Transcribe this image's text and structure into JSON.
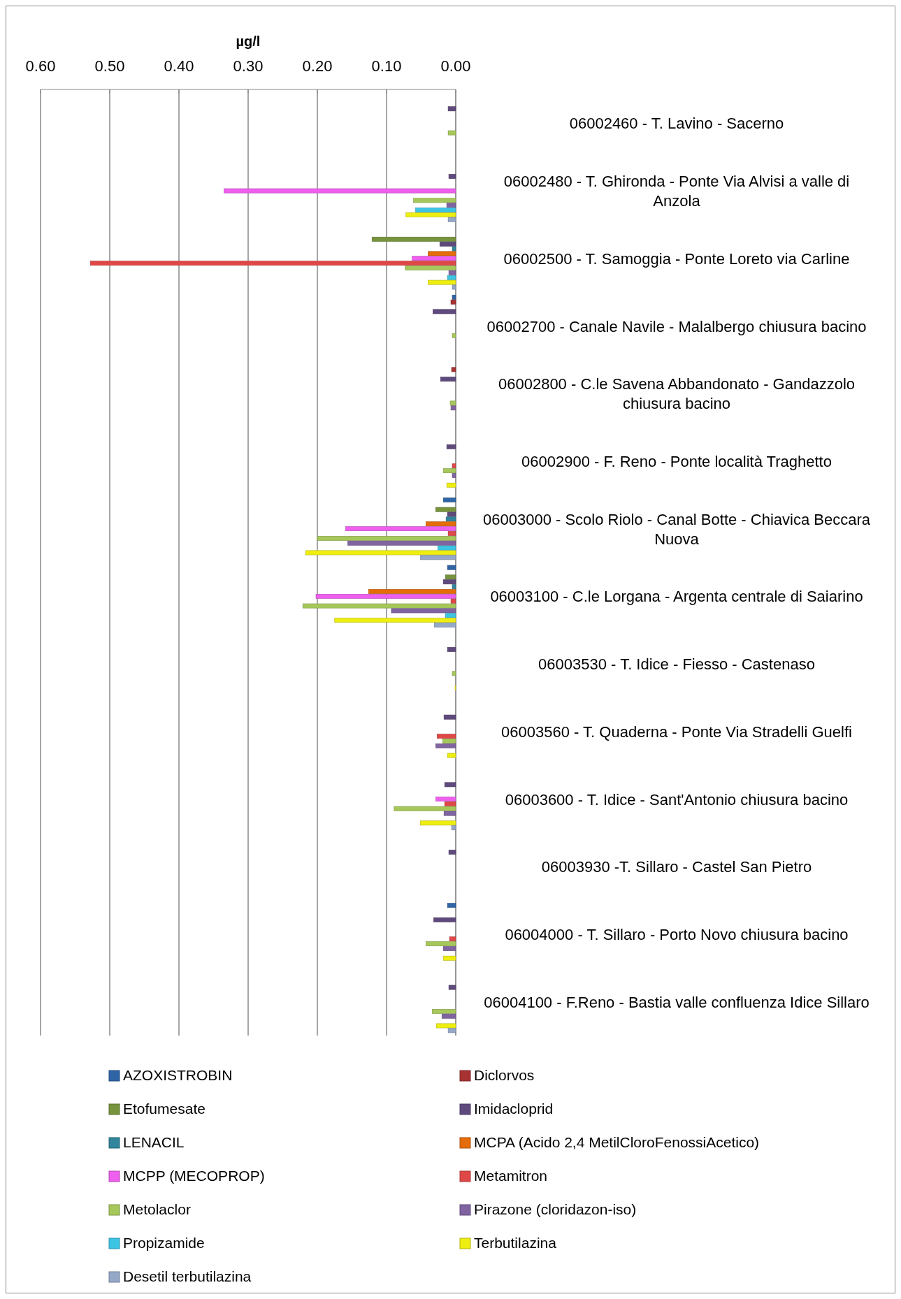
{
  "chart_data": {
    "type": "bar",
    "orientation": "horizontal",
    "xlabel": "µg/l",
    "categories": [
      "06002460 - T. Lavino - Sacerno",
      "06002480 - T. Ghironda - Ponte Via Alvisi a valle di Anzola",
      "06002500 - T. Samoggia - Ponte Loreto via Carline",
      "06002700 - Canale Navile - Malalbergo chiusura bacino",
      "06002800 - C.le Savena Abbandonato - Gandazzolo chiusura bacino",
      "06002900 - F. Reno - Ponte località Traghetto",
      "06003000 - Scolo Riolo - Canal Botte - Chiavica Beccara Nuova",
      "06003100 - C.le Lorgana - Argenta centrale di Saiarino",
      "06003530 - T. Idice - Fiesso - Castenaso",
      "06003560 - T. Quaderna - Ponte Via Stradelli Guelfi",
      "06003600 - T. Idice - Sant'Antonio chiusura bacino",
      "06003930 -T. Sillaro - Castel San Pietro",
      "06004000 - T. Sillaro - Porto Novo chiusura bacino",
      "06004100 - F.Reno - Bastia valle confluenza Idice Sillaro"
    ],
    "series": [
      {
        "name": "AZOXISTROBIN",
        "color": "#2f64a6",
        "values": [
          null,
          null,
          null,
          0.005,
          null,
          null,
          0.018,
          0.012,
          null,
          null,
          null,
          null,
          0.012,
          null
        ]
      },
      {
        "name": "Diclorvos",
        "color": "#a83232",
        "values": [
          null,
          null,
          null,
          0.007,
          0.006,
          null,
          null,
          null,
          null,
          null,
          null,
          null,
          null,
          null
        ]
      },
      {
        "name": "Etofumesate",
        "color": "#77933c",
        "values": [
          null,
          null,
          0.121,
          null,
          null,
          null,
          0.029,
          0.015,
          null,
          null,
          null,
          null,
          null,
          null
        ]
      },
      {
        "name": "Imidacloprid",
        "color": "#5f4a7d",
        "values": [
          0.011,
          0.01,
          0.023,
          0.033,
          0.022,
          0.013,
          0.012,
          0.018,
          0.012,
          0.017,
          0.016,
          0.01,
          0.032,
          0.01
        ]
      },
      {
        "name": "LENACIL",
        "color": "#31859c",
        "values": [
          null,
          null,
          0.005,
          null,
          null,
          null,
          0.014,
          0.005,
          null,
          null,
          null,
          null,
          null,
          null
        ]
      },
      {
        "name": "MCPA (Acido 2,4 MetilCloroFenossiAcetico)",
        "color": "#e46c0a",
        "values": [
          null,
          null,
          0.04,
          null,
          null,
          null,
          0.043,
          0.126,
          null,
          null,
          null,
          null,
          null,
          null
        ]
      },
      {
        "name": "MCPP (MECOPROP)",
        "color": "#ee5fee",
        "values": [
          null,
          0.335,
          0.063,
          null,
          null,
          null,
          0.159,
          0.202,
          null,
          null,
          0.029,
          null,
          null,
          null
        ]
      },
      {
        "name": "Metamitron",
        "color": "#e04848",
        "values": [
          null,
          null,
          0.528,
          null,
          null,
          0.005,
          0.011,
          0.007,
          null,
          0.027,
          0.016,
          null,
          0.009,
          null
        ]
      },
      {
        "name": "Metolaclor",
        "color": "#a6c85a",
        "values": [
          0.011,
          0.061,
          0.073,
          0.005,
          0.008,
          0.018,
          0.2,
          0.221,
          0.005,
          0.019,
          0.089,
          null,
          0.043,
          0.034
        ]
      },
      {
        "name": "Pirazone (cloridazon-iso)",
        "color": "#8064a2",
        "values": [
          null,
          0.013,
          0.01,
          null,
          0.007,
          0.005,
          0.156,
          0.093,
          null,
          0.029,
          0.017,
          null,
          0.018,
          0.02
        ]
      },
      {
        "name": "Propizamide",
        "color": "#3cc4e4",
        "values": [
          null,
          0.058,
          0.012,
          null,
          null,
          null,
          0.026,
          0.015,
          null,
          null,
          null,
          null,
          null,
          null
        ]
      },
      {
        "name": "Terbutilazina",
        "color": "#eeee10",
        "values": [
          null,
          0.072,
          0.04,
          null,
          null,
          0.013,
          0.217,
          0.175,
          0.001,
          0.012,
          0.051,
          null,
          0.018,
          0.028
        ]
      },
      {
        "name": "Desetil terbutilazina",
        "color": "#95a8c8",
        "values": [
          null,
          0.011,
          0.005,
          null,
          null,
          null,
          0.051,
          0.031,
          null,
          null,
          0.006,
          null,
          null,
          0.011
        ]
      }
    ],
    "xlim": [
      0.6,
      0
    ],
    "xticks": [
      {
        "value": 0.6,
        "label": "0.60"
      },
      {
        "value": 0.5,
        "label": "0.50"
      },
      {
        "value": 0.4,
        "label": "0.40"
      },
      {
        "value": 0.3,
        "label": "0.30"
      },
      {
        "value": 0.2,
        "label": "0.20"
      },
      {
        "value": 0.1,
        "label": "0.10"
      },
      {
        "value": 0,
        "label": "0.00"
      }
    ],
    "grid": "x",
    "legend": "bottom"
  }
}
